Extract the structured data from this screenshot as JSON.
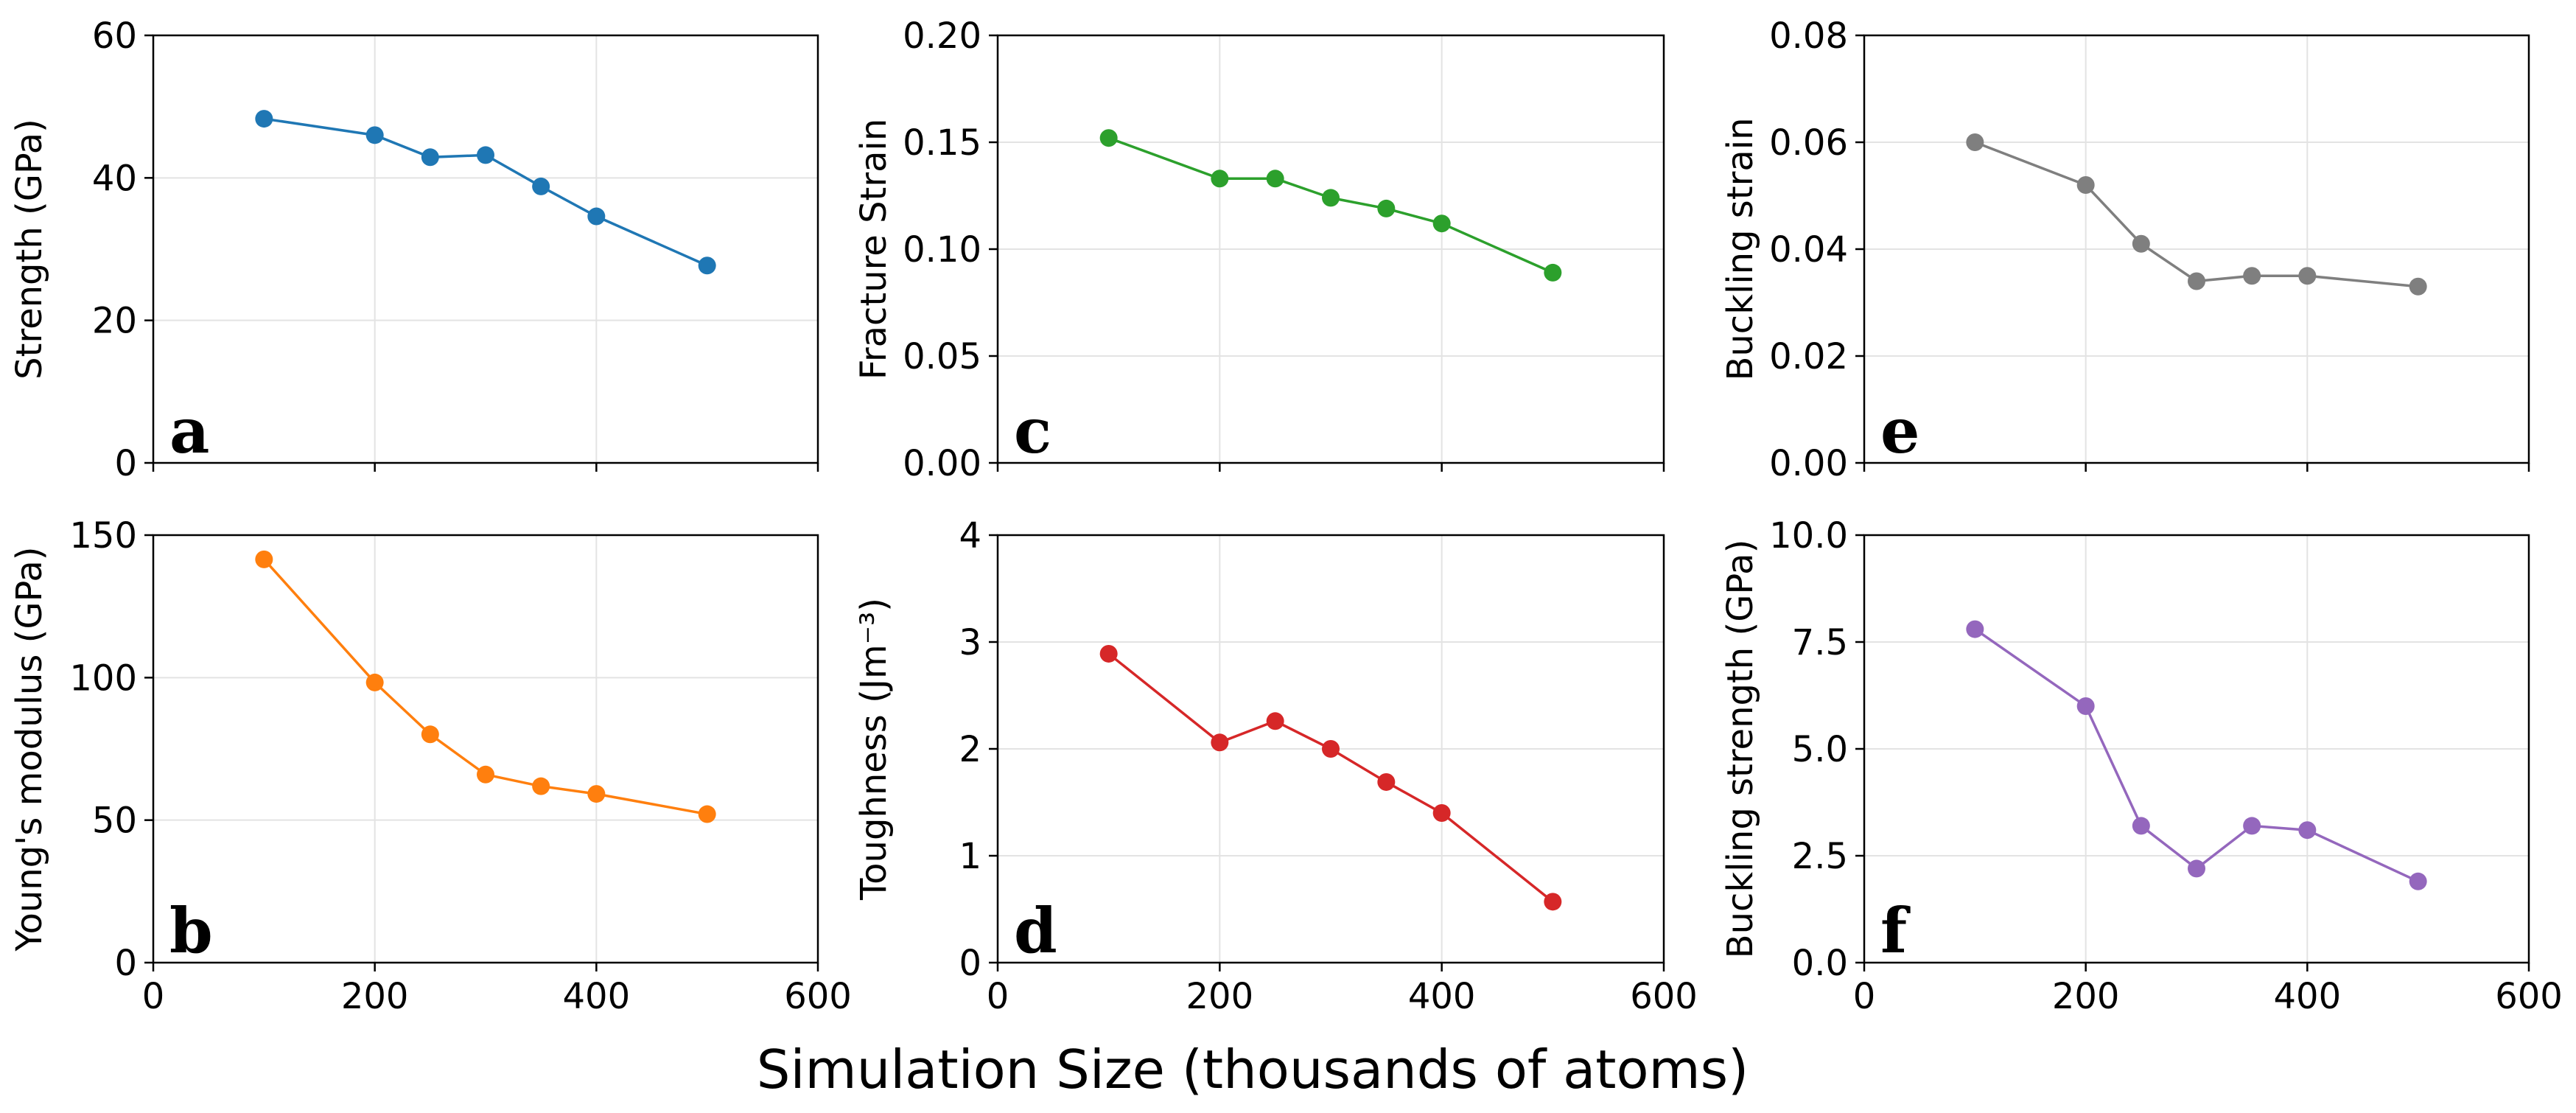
{
  "figure": {
    "shared_xlabel": "Simulation Size (thousands of atoms)"
  },
  "chart_data": [
    {
      "type": "line",
      "panel": "a",
      "position": "top-left",
      "x": [
        100,
        200,
        250,
        300,
        350,
        400,
        500
      ],
      "values": [
        48.3,
        46.0,
        42.9,
        43.2,
        38.8,
        34.6,
        27.7
      ],
      "ylabel": "Strength (GPa)",
      "xlabel": "",
      "xlim": [
        0,
        600
      ],
      "ylim": [
        0,
        60
      ],
      "xticks": [
        0,
        200,
        400,
        600
      ],
      "xtick_labels": [],
      "yticks": [
        0,
        20,
        40,
        60
      ],
      "ytick_labels": [
        "0",
        "20",
        "40",
        "60"
      ],
      "color": "#1f77b4",
      "grid": true
    },
    {
      "type": "line",
      "panel": "b",
      "position": "bottom-left",
      "x": [
        100,
        200,
        250,
        300,
        350,
        400,
        500
      ],
      "values": [
        141.5,
        98.3,
        80.1,
        66.0,
        61.9,
        59.2,
        52.1
      ],
      "ylabel": "Young's modulus (GPa)",
      "xlabel": "",
      "xlim": [
        0,
        600
      ],
      "ylim": [
        0,
        150
      ],
      "xticks": [
        0,
        200,
        400,
        600
      ],
      "xtick_labels": [
        "0",
        "200",
        "400",
        "600"
      ],
      "yticks": [
        0,
        50,
        100,
        150
      ],
      "ytick_labels": [
        "0",
        "50",
        "100",
        "150"
      ],
      "color": "#ff7f0e",
      "grid": true
    },
    {
      "type": "line",
      "panel": "c",
      "position": "top-middle",
      "x": [
        100,
        200,
        250,
        300,
        350,
        400,
        500
      ],
      "values": [
        0.152,
        0.133,
        0.133,
        0.124,
        0.119,
        0.112,
        0.089
      ],
      "ylabel": "Fracture Strain",
      "xlabel": "",
      "xlim": [
        0,
        600
      ],
      "ylim": [
        0,
        0.2
      ],
      "xticks": [
        0,
        200,
        400,
        600
      ],
      "xtick_labels": [],
      "yticks": [
        0,
        0.05,
        0.1,
        0.15,
        0.2
      ],
      "ytick_labels": [
        "0.00",
        "0.05",
        "0.10",
        "0.15",
        "0.20"
      ],
      "color": "#2ca02c",
      "grid": true
    },
    {
      "type": "line",
      "panel": "d",
      "position": "bottom-middle",
      "x": [
        100,
        200,
        250,
        300,
        350,
        400,
        500
      ],
      "values": [
        2.89,
        2.06,
        2.26,
        2.0,
        1.69,
        1.4,
        0.57
      ],
      "ylabel": "Toughness (Jm⁻³)",
      "xlabel": "",
      "xlim": [
        0,
        600
      ],
      "ylim": [
        0,
        4
      ],
      "xticks": [
        0,
        200,
        400,
        600
      ],
      "xtick_labels": [
        "0",
        "200",
        "400",
        "600"
      ],
      "yticks": [
        0,
        1,
        2,
        3,
        4
      ],
      "ytick_labels": [
        "0",
        "1",
        "2",
        "3",
        "4"
      ],
      "color": "#d62728",
      "grid": true
    },
    {
      "type": "line",
      "panel": "e",
      "position": "top-right",
      "x": [
        100,
        200,
        250,
        300,
        350,
        400,
        500
      ],
      "values": [
        0.06,
        0.052,
        0.041,
        0.034,
        0.035,
        0.035,
        0.033
      ],
      "ylabel": "Buckling strain",
      "xlabel": "",
      "xlim": [
        0,
        600
      ],
      "ylim": [
        0,
        0.08
      ],
      "xticks": [
        0,
        200,
        400,
        600
      ],
      "xtick_labels": [],
      "yticks": [
        0,
        0.02,
        0.04,
        0.06,
        0.08
      ],
      "ytick_labels": [
        "0.00",
        "0.02",
        "0.04",
        "0.06",
        "0.08"
      ],
      "color": "#7f7f7f",
      "grid": true
    },
    {
      "type": "line",
      "panel": "f",
      "position": "bottom-right",
      "x": [
        100,
        200,
        250,
        300,
        350,
        400,
        500
      ],
      "values": [
        7.8,
        6.0,
        3.2,
        2.2,
        3.2,
        3.1,
        1.9
      ],
      "ylabel": "Buckling strength (GPa)",
      "xlabel": "",
      "xlim": [
        0,
        600
      ],
      "ylim": [
        0,
        10
      ],
      "xticks": [
        0,
        200,
        400,
        600
      ],
      "xtick_labels": [
        "0",
        "200",
        "400",
        "600"
      ],
      "yticks": [
        0,
        2.5,
        5,
        7.5,
        10
      ],
      "ytick_labels": [
        "0.0",
        "2.5",
        "5.0",
        "7.5",
        "10.0"
      ],
      "color": "#9467bd",
      "grid": true
    }
  ]
}
